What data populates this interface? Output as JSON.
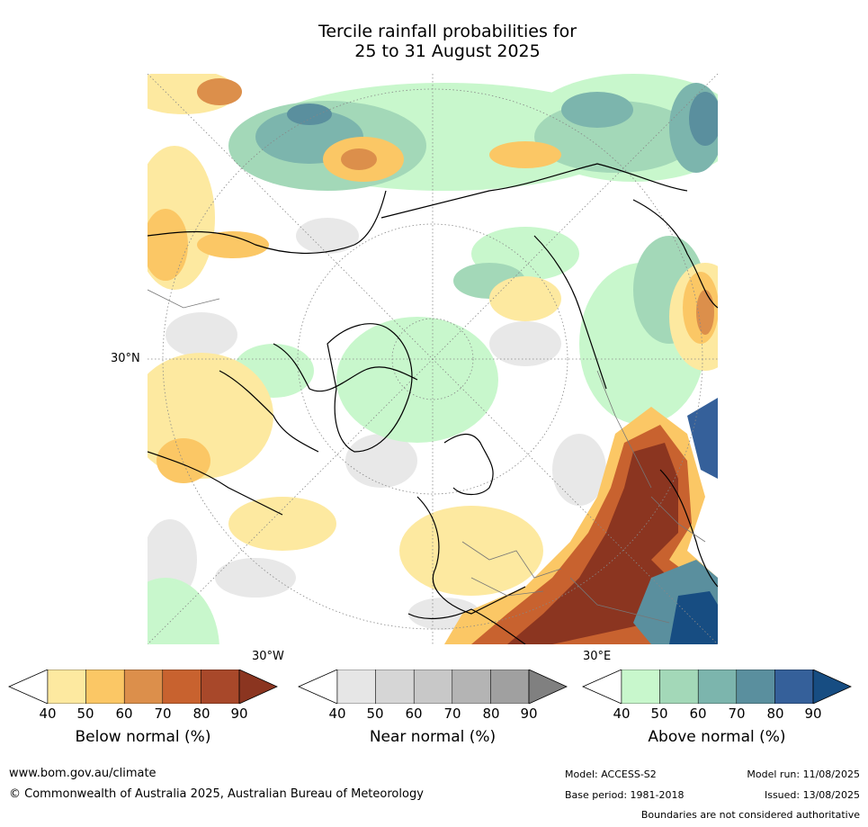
{
  "title": {
    "line1": "Tercile rainfall probabilities for",
    "line2": "25 to 31 August 2025"
  },
  "axes": {
    "lat_label": "30°N",
    "lon_left": "30°W",
    "lon_right": "30°E"
  },
  "legends": [
    {
      "label": "Below normal (%)",
      "ticks": [
        "40",
        "50",
        "60",
        "70",
        "80",
        "90"
      ],
      "colors": [
        "#ffffff",
        "#fde9a0",
        "#fbc765",
        "#dc8f4b",
        "#c8622f",
        "#a8482a",
        "#8b3520"
      ]
    },
    {
      "label": "Near normal (%)",
      "ticks": [
        "40",
        "50",
        "60",
        "70",
        "80",
        "90"
      ],
      "colors": [
        "#ffffff",
        "#e6e6e6",
        "#d6d6d6",
        "#c8c8c8",
        "#b4b4b4",
        "#a0a0a0",
        "#808080"
      ]
    },
    {
      "label": "Above normal (%)",
      "ticks": [
        "40",
        "50",
        "60",
        "70",
        "80",
        "90"
      ],
      "colors": [
        "#ffffff",
        "#c8f7cc",
        "#a3d8b8",
        "#7cb5ad",
        "#5a8f9e",
        "#35609a",
        "#174d82"
      ]
    }
  ],
  "footer": {
    "website": "www.bom.gov.au/climate",
    "copyright": "© Commonwealth of Australia 2025, Australian Bureau of Meteorology",
    "model": "Model: ACCESS-S2",
    "base_period": "Base period: 1981-2018",
    "model_run": "Model run: 11/08/2025",
    "issued": "Issued: 13/08/2025",
    "disclaimer": "Boundaries are not considered authoritative"
  }
}
